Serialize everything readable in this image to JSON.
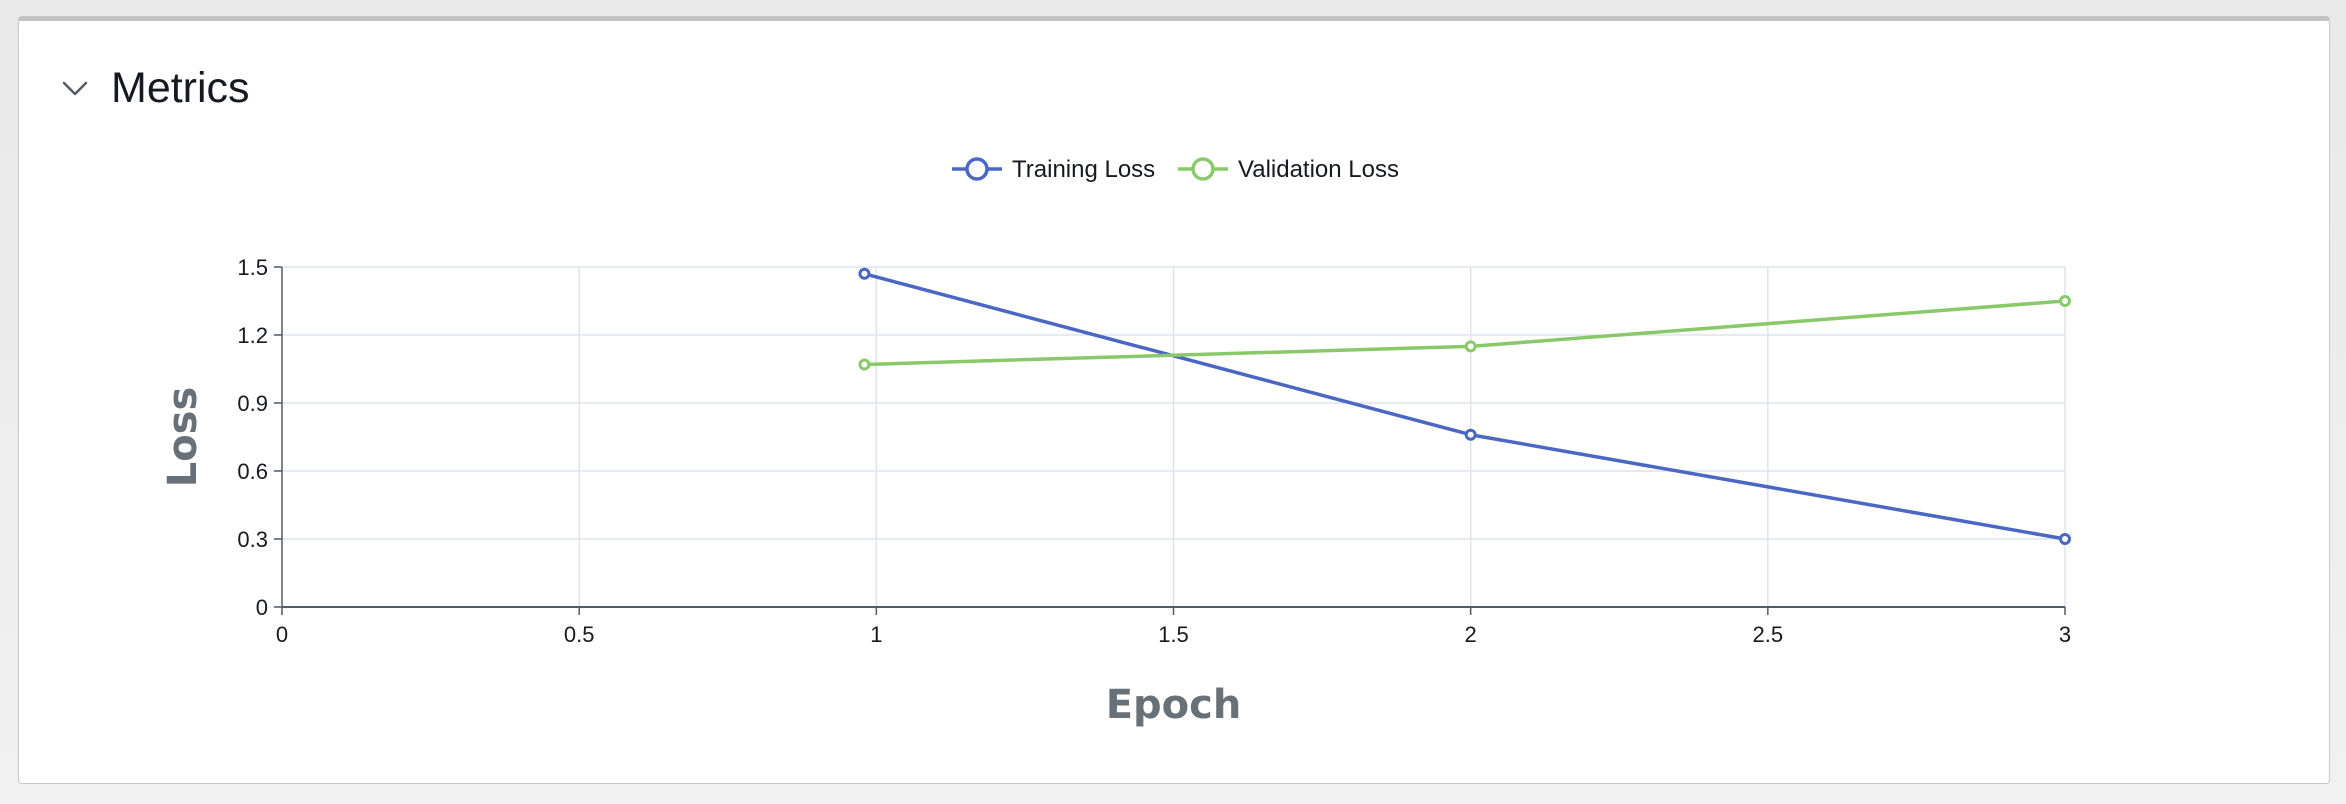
{
  "section": {
    "title": "Metrics",
    "collapse_icon": "chevron-down-icon"
  },
  "colors": {
    "training": "#4a67c3",
    "validation": "#8ac96a",
    "grid": "#dfe3ec",
    "axis": "#545b64"
  },
  "chart_data": {
    "type": "line",
    "xlabel": "Epoch",
    "ylabel": "Loss",
    "xlim": [
      0,
      3
    ],
    "ylim": [
      0,
      1.5
    ],
    "x_ticks": [
      "0",
      "0.5",
      "1",
      "1.5",
      "2",
      "2.5",
      "3"
    ],
    "y_ticks": [
      "0",
      "0.3",
      "0.6",
      "0.9",
      "1.2",
      "1.5"
    ],
    "legend_position": "top-center",
    "grid": true,
    "series": [
      {
        "name": "Training Loss",
        "x": [
          0.98,
          2,
          3
        ],
        "y": [
          1.47,
          0.76,
          0.3
        ]
      },
      {
        "name": "Validation Loss",
        "x": [
          0.98,
          2,
          3
        ],
        "y": [
          1.07,
          1.15,
          1.35
        ]
      }
    ]
  }
}
